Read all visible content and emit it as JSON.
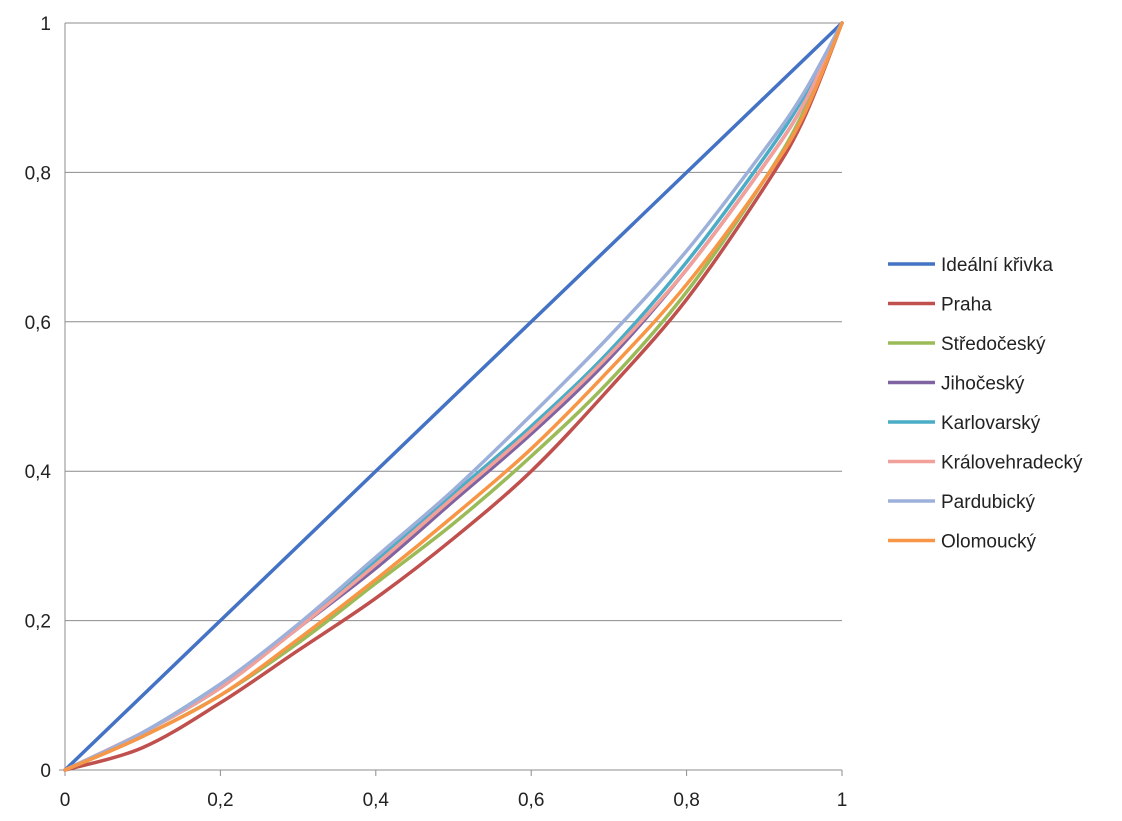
{
  "chart_data": {
    "type": "line",
    "title": "",
    "xlabel": "",
    "ylabel": "",
    "xlim": [
      0,
      1
    ],
    "ylim": [
      0,
      1
    ],
    "x_ticks": [
      "0",
      "0,2",
      "0,4",
      "0,6",
      "0,8",
      "1"
    ],
    "y_ticks": [
      "0",
      "0,2",
      "0,4",
      "0,6",
      "0,8",
      "1"
    ],
    "grid": "horizontal",
    "legend_position": "right",
    "x": [
      0,
      0.1,
      0.2,
      0.3,
      0.4,
      0.5,
      0.6,
      0.7,
      0.8,
      0.9,
      0.95,
      1
    ],
    "series": [
      {
        "name": "Ideální křivka",
        "color": "#4472C4",
        "values": [
          0,
          0.1,
          0.2,
          0.3,
          0.4,
          0.5,
          0.6,
          0.7,
          0.8,
          0.9,
          0.95,
          1
        ]
      },
      {
        "name": "Praha",
        "color": "#C0504D",
        "values": [
          0,
          0.03,
          0.09,
          0.16,
          0.23,
          0.31,
          0.4,
          0.51,
          0.63,
          0.78,
          0.87,
          1
        ]
      },
      {
        "name": "Středočeský",
        "color": "#9BBB59",
        "values": [
          0,
          0.045,
          0.1,
          0.17,
          0.25,
          0.33,
          0.42,
          0.52,
          0.64,
          0.79,
          0.88,
          1
        ]
      },
      {
        "name": "Jihočeský",
        "color": "#8064A2",
        "values": [
          0,
          0.05,
          0.11,
          0.19,
          0.27,
          0.36,
          0.45,
          0.55,
          0.67,
          0.81,
          0.89,
          1
        ]
      },
      {
        "name": "Karlovarský",
        "color": "#4BACC6",
        "values": [
          0,
          0.05,
          0.115,
          0.19,
          0.28,
          0.37,
          0.46,
          0.56,
          0.68,
          0.82,
          0.9,
          1
        ]
      },
      {
        "name": "Královehradecký",
        "color": "#F2A09A",
        "values": [
          0,
          0.05,
          0.11,
          0.19,
          0.275,
          0.365,
          0.455,
          0.555,
          0.67,
          0.81,
          0.89,
          1
        ]
      },
      {
        "name": "Pardubický",
        "color": "#9DB0DA",
        "values": [
          0,
          0.05,
          0.115,
          0.195,
          0.285,
          0.375,
          0.475,
          0.58,
          0.695,
          0.83,
          0.905,
          1
        ]
      },
      {
        "name": "Olomoucký",
        "color": "#F79646",
        "values": [
          0,
          0.045,
          0.1,
          0.175,
          0.255,
          0.34,
          0.43,
          0.535,
          0.65,
          0.79,
          0.875,
          1
        ]
      }
    ]
  }
}
